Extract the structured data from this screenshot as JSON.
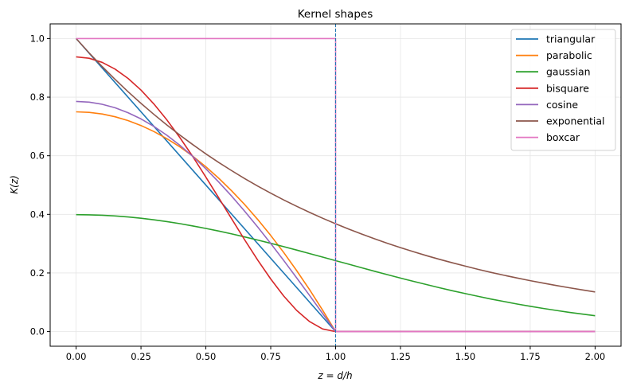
{
  "chart_data": {
    "type": "line",
    "title": "Kernel shapes",
    "xlabel": "z = d/h",
    "ylabel": "K(z)",
    "xlim": [
      -0.1,
      2.1
    ],
    "ylim": [
      -0.05,
      1.05
    ],
    "xticks": [
      "0.00",
      "0.25",
      "0.50",
      "0.75",
      "1.00",
      "1.25",
      "1.50",
      "1.75",
      "2.00"
    ],
    "yticks": [
      "0.0",
      "0.2",
      "0.4",
      "0.6",
      "0.8",
      "1.0"
    ],
    "grid": true,
    "legend": "top-right",
    "vline": {
      "x": 1.0,
      "style": "dashed",
      "color": "#1f77b4"
    },
    "series": [
      {
        "name": "triangular",
        "color": "#1f77b4",
        "x": [
          0,
          1,
          2
        ],
        "y": [
          1,
          0,
          0
        ]
      },
      {
        "name": "parabolic",
        "color": "#ff7f0e",
        "x": [
          0,
          0.05,
          0.1,
          0.15,
          0.2,
          0.25,
          0.3,
          0.35,
          0.4,
          0.45,
          0.5,
          0.55,
          0.6,
          0.65,
          0.7,
          0.75,
          0.8,
          0.85,
          0.9,
          0.95,
          1.0,
          2.0
        ],
        "y": [
          0.75,
          0.7481,
          0.7425,
          0.7331,
          0.72,
          0.7031,
          0.6825,
          0.6581,
          0.63,
          0.5981,
          0.5625,
          0.5231,
          0.48,
          0.4331,
          0.3825,
          0.3281,
          0.27,
          0.2081,
          0.1425,
          0.0731,
          0,
          0
        ]
      },
      {
        "name": "gaussian",
        "color": "#2ca02c",
        "x": [
          0,
          0.05,
          0.1,
          0.15,
          0.2,
          0.25,
          0.3,
          0.35,
          0.4,
          0.45,
          0.5,
          0.55,
          0.6,
          0.65,
          0.7,
          0.75,
          0.8,
          0.85,
          0.9,
          0.95,
          1.0,
          1.05,
          1.1,
          1.15,
          1.2,
          1.25,
          1.3,
          1.35,
          1.4,
          1.45,
          1.5,
          1.55,
          1.6,
          1.65,
          1.7,
          1.75,
          1.8,
          1.85,
          1.9,
          1.95,
          2.0
        ],
        "y": [
          0.3989,
          0.3984,
          0.397,
          0.3945,
          0.391,
          0.3867,
          0.3814,
          0.3752,
          0.3683,
          0.3605,
          0.3521,
          0.3429,
          0.3332,
          0.323,
          0.3123,
          0.3011,
          0.2897,
          0.278,
          0.2661,
          0.2541,
          0.242,
          0.2299,
          0.2178,
          0.2059,
          0.1942,
          0.1826,
          0.1714,
          0.1604,
          0.1497,
          0.1394,
          0.1295,
          0.12,
          0.1109,
          0.1023,
          0.094,
          0.0863,
          0.079,
          0.0721,
          0.0656,
          0.0596,
          0.054
        ]
      },
      {
        "name": "bisquare",
        "color": "#d62728",
        "x": [
          0,
          0.05,
          0.1,
          0.15,
          0.2,
          0.25,
          0.3,
          0.35,
          0.4,
          0.45,
          0.5,
          0.55,
          0.6,
          0.65,
          0.7,
          0.75,
          0.8,
          0.85,
          0.9,
          0.95,
          1.0,
          2.0
        ],
        "y": [
          0.9375,
          0.9328,
          0.9188,
          0.8958,
          0.864,
          0.824,
          0.7763,
          0.7219,
          0.6615,
          0.5963,
          0.5273,
          0.4561,
          0.384,
          0.3127,
          0.2438,
          0.1794,
          0.1215,
          0.0722,
          0.0338,
          0.0089,
          0,
          0
        ]
      },
      {
        "name": "cosine",
        "color": "#9467bd",
        "x": [
          0,
          0.05,
          0.1,
          0.15,
          0.2,
          0.25,
          0.3,
          0.35,
          0.4,
          0.45,
          0.5,
          0.55,
          0.6,
          0.65,
          0.7,
          0.75,
          0.8,
          0.85,
          0.9,
          0.95,
          1.0,
          2.0
        ],
        "y": [
          0.7854,
          0.783,
          0.7757,
          0.7637,
          0.747,
          0.7256,
          0.6998,
          0.6697,
          0.6354,
          0.5972,
          0.5554,
          0.5101,
          0.4616,
          0.4104,
          0.3566,
          0.3006,
          0.2427,
          0.1834,
          0.1229,
          0.0616,
          0,
          0
        ]
      },
      {
        "name": "exponential",
        "color": "#8c564b",
        "x": [
          0,
          0.05,
          0.1,
          0.15,
          0.2,
          0.25,
          0.3,
          0.35,
          0.4,
          0.45,
          0.5,
          0.55,
          0.6,
          0.65,
          0.7,
          0.75,
          0.8,
          0.85,
          0.9,
          0.95,
          1.0,
          1.05,
          1.1,
          1.15,
          1.2,
          1.25,
          1.3,
          1.35,
          1.4,
          1.45,
          1.5,
          1.55,
          1.6,
          1.65,
          1.7,
          1.75,
          1.8,
          1.85,
          1.9,
          1.95,
          2.0
        ],
        "y": [
          1,
          0.9512,
          0.9048,
          0.8607,
          0.8187,
          0.7788,
          0.7408,
          0.7047,
          0.6703,
          0.6376,
          0.6065,
          0.5769,
          0.5488,
          0.522,
          0.4966,
          0.4724,
          0.4493,
          0.4274,
          0.4066,
          0.3867,
          0.3679,
          0.3499,
          0.3329,
          0.3166,
          0.3012,
          0.2865,
          0.2725,
          0.2592,
          0.2466,
          0.2346,
          0.2231,
          0.2122,
          0.2019,
          0.192,
          0.1827,
          0.1738,
          0.1653,
          0.1572,
          0.1496,
          0.1423,
          0.1353
        ]
      },
      {
        "name": "boxcar",
        "color": "#e377c2",
        "x": [
          0,
          1,
          1,
          2
        ],
        "y": [
          1,
          1,
          0,
          0
        ]
      }
    ]
  }
}
